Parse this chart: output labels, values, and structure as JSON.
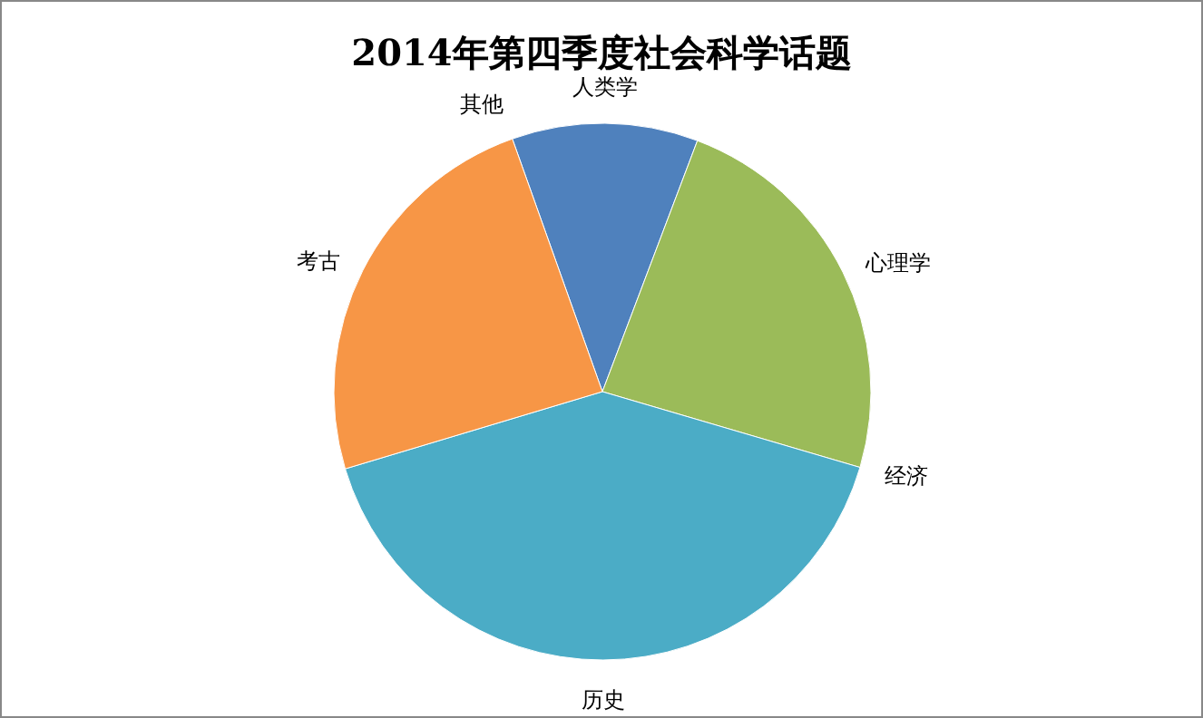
{
  "chart_data": {
    "type": "pie",
    "title": "2014年第四季度社会科学话题",
    "categories": [
      "人类学",
      "心理学",
      "经济",
      "历史",
      "考古",
      "其他"
    ],
    "values": [
      11.2,
      23.8,
      0,
      40.8,
      24.2,
      0
    ],
    "colors": [
      "#4f81bd",
      "#9bbb59",
      "#8064a2",
      "#4bacc6",
      "#f79646",
      "#c0504d"
    ]
  }
}
